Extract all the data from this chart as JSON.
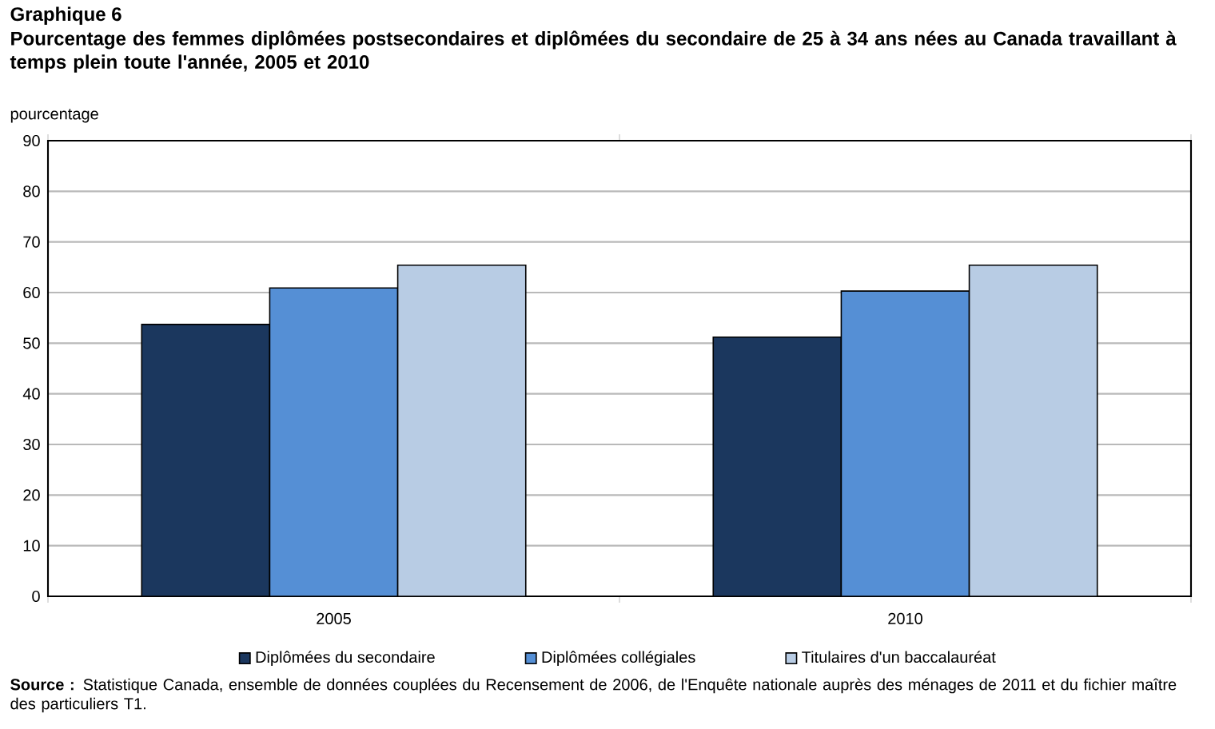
{
  "chart_data": {
    "type": "bar",
    "title": "Graphique 6",
    "subtitle": "Pourcentage des femmes diplômées postsecondaires et diplômées du secondaire de 25 à 34 ans nées au Canada travaillant à temps plein toute l'année, 2005 et 2010",
    "ylabel": "pourcentage",
    "categories": [
      "2005",
      "2010"
    ],
    "series": [
      {
        "name": "Diplômées du secondaire",
        "color": "#1b375e",
        "values": [
          53.7,
          51.2
        ]
      },
      {
        "name": "Diplômées collégiales",
        "color": "#558fd5",
        "values": [
          60.9,
          60.3
        ]
      },
      {
        "name": "Titulaires d'un baccalauréat",
        "color": "#b8cce4",
        "values": [
          65.4,
          65.4
        ]
      }
    ],
    "ylim": [
      0,
      90
    ],
    "yticks": [
      0,
      10,
      20,
      30,
      40,
      50,
      60,
      70,
      80,
      90
    ],
    "grid": "y",
    "legend": "bottom",
    "annotations": [
      "**Source :** Statistique Canada, ensemble de données couplées du Recensement de 2006, de l'Enquête nationale auprès des ménages de 2011 et du fichier maître des particuliers T1."
    ]
  }
}
